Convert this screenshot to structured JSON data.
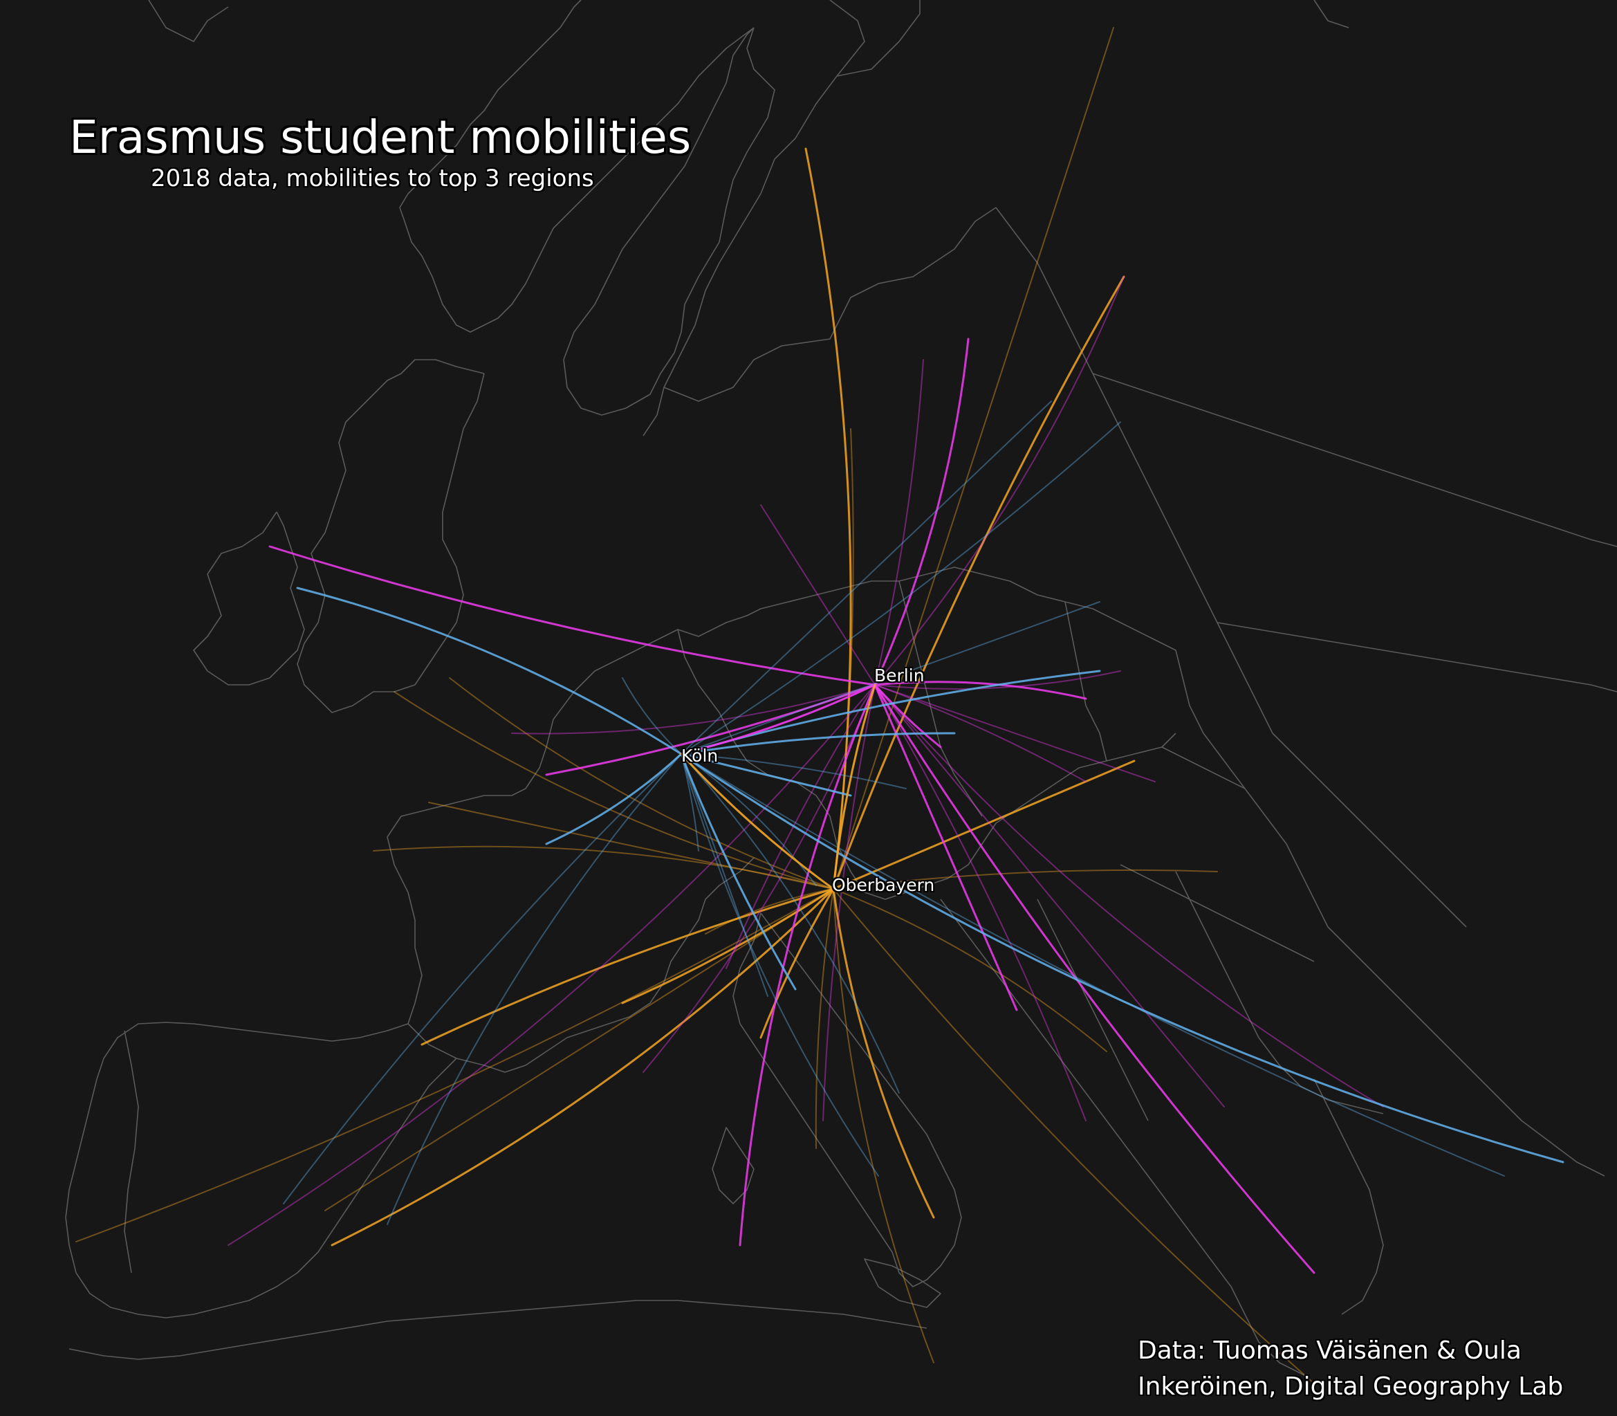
{
  "title": "Erasmus student mobilities",
  "subtitle": "2018 data, mobilities to top 3 regions",
  "credit_line1": "Data: Tuomas Väisänen & Oula",
  "credit_line2": "Inkeröinen, Digital Geography Lab",
  "colors": {
    "background": "#171717",
    "borders": "#5a5a5a",
    "koln": "#64b4f0",
    "berlin": "#f03cf0",
    "oberbayern": "#f5a623"
  },
  "destinations": [
    {
      "name": "Köln",
      "color_key": "koln"
    },
    {
      "name": "Berlin",
      "color_key": "berlin"
    },
    {
      "name": "Oberbayern",
      "color_key": "oberbayern"
    }
  ]
}
